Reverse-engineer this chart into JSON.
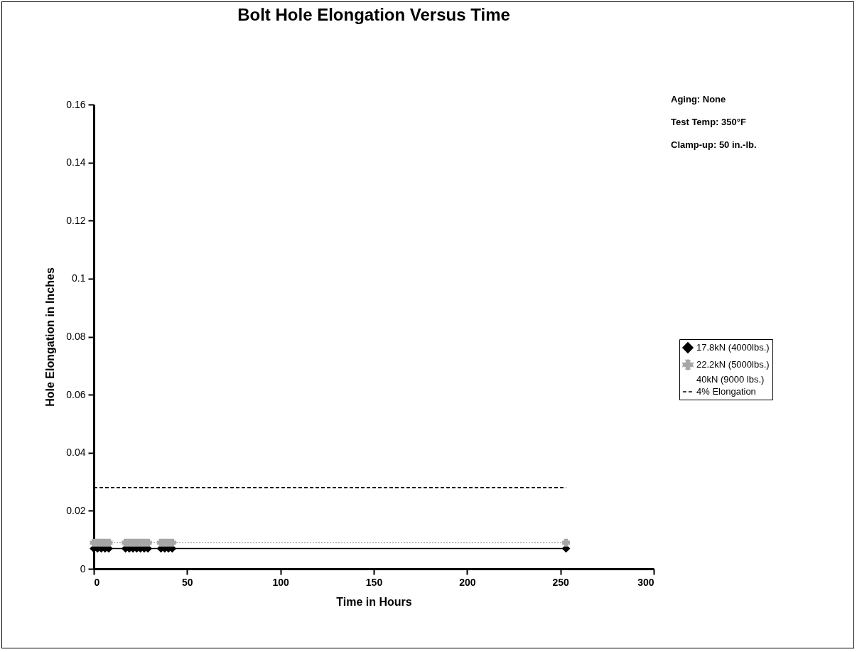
{
  "chart_data": {
    "type": "line",
    "title": "Bolt Hole Elongation Versus Time",
    "xlabel": "Time in Hours",
    "ylabel": "Hole Elongation in Inches",
    "xlim": [
      0,
      300
    ],
    "xticks": [
      0,
      50,
      100,
      150,
      200,
      250,
      300
    ],
    "ylim": [
      0,
      0.16
    ],
    "yticks": [
      0,
      0.02,
      0.04,
      0.06,
      0.08,
      0.1,
      0.12,
      0.14,
      0.16
    ],
    "legend": "right",
    "annotations": [
      "Aging:  None",
      "Test Temp:  350°F",
      "Clamp-up: 50 in.-lb."
    ],
    "series": [
      {
        "name": "17.8kN (4000lbs.)",
        "color": "#000000",
        "marker": "diamond",
        "line_style": "solid",
        "x": [
          0,
          2,
          4,
          6,
          8,
          17,
          19,
          21,
          23,
          25,
          27,
          29,
          36,
          38,
          40,
          42,
          253
        ],
        "values": [
          0.007,
          0.007,
          0.007,
          0.007,
          0.007,
          0.007,
          0.007,
          0.007,
          0.007,
          0.007,
          0.007,
          0.007,
          0.007,
          0.007,
          0.007,
          0.007,
          0.007
        ]
      },
      {
        "name": "22.2kN (5000lbs.)",
        "color": "#a6a6a6",
        "marker": "cross",
        "line_style": "dotted",
        "x": [
          0,
          2,
          4,
          6,
          8,
          17,
          19,
          21,
          23,
          25,
          27,
          29,
          36,
          38,
          40,
          42,
          253
        ],
        "values": [
          0.009,
          0.009,
          0.009,
          0.009,
          0.009,
          0.009,
          0.009,
          0.009,
          0.009,
          0.009,
          0.009,
          0.009,
          0.009,
          0.009,
          0.009,
          0.009,
          0.009
        ]
      },
      {
        "name": "40kN (9000 lbs.)"
      },
      {
        "name": "4% Elongation",
        "color": "#000000",
        "marker": "none",
        "line_style": "dashed",
        "x": [
          0,
          253
        ],
        "values": [
          0.028,
          0.028
        ]
      }
    ]
  }
}
